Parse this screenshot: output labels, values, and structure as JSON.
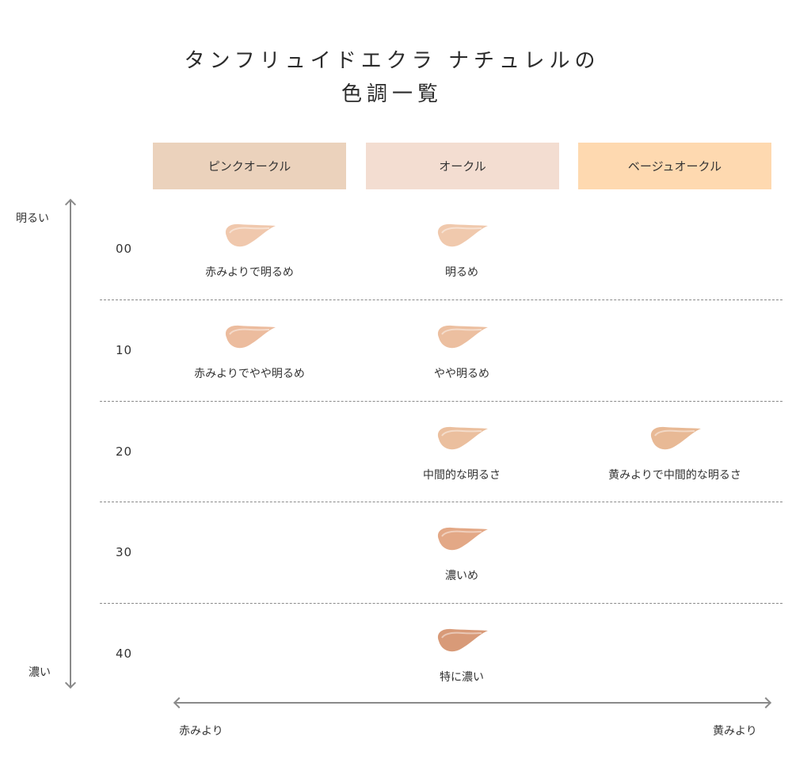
{
  "title": {
    "line1": "タンフリュイドエクラ ナチュレルの",
    "line2": "色調一覧"
  },
  "columns": [
    {
      "label": "ピンクオークル",
      "color": "#ebd2bc"
    },
    {
      "label": "オークル",
      "color": "#f3ddd1"
    },
    {
      "label": "ベージュオークル",
      "color": "#fed9b0"
    }
  ],
  "axis": {
    "top": "明るい",
    "bottom": "濃い",
    "left": "赤みより",
    "right": "黄みより",
    "line_color": "#8a8a8a"
  },
  "rows": [
    {
      "level": "00",
      "cells": [
        {
          "label": "赤みよりで明るめ",
          "color": "#f0c8ad"
        },
        {
          "label": "明るめ",
          "color": "#f0c9ad"
        },
        null
      ]
    },
    {
      "level": "10",
      "cells": [
        {
          "label": "赤みよりでやや明るめ",
          "color": "#ecbc9e"
        },
        {
          "label": "やや明るめ",
          "color": "#ecbfa0"
        },
        null
      ]
    },
    {
      "level": "20",
      "cells": [
        null,
        {
          "label": "中間的な明るさ",
          "color": "#ebbf9e"
        },
        {
          "label": "黄みよりで中間的な明るさ",
          "color": "#e8b995"
        }
      ]
    },
    {
      "level": "30",
      "cells": [
        null,
        {
          "label": "濃いめ",
          "color": "#e3a886"
        },
        null
      ]
    },
    {
      "level": "40",
      "cells": [
        null,
        {
          "label": "特に濃い",
          "color": "#d89a78"
        },
        null
      ]
    }
  ]
}
